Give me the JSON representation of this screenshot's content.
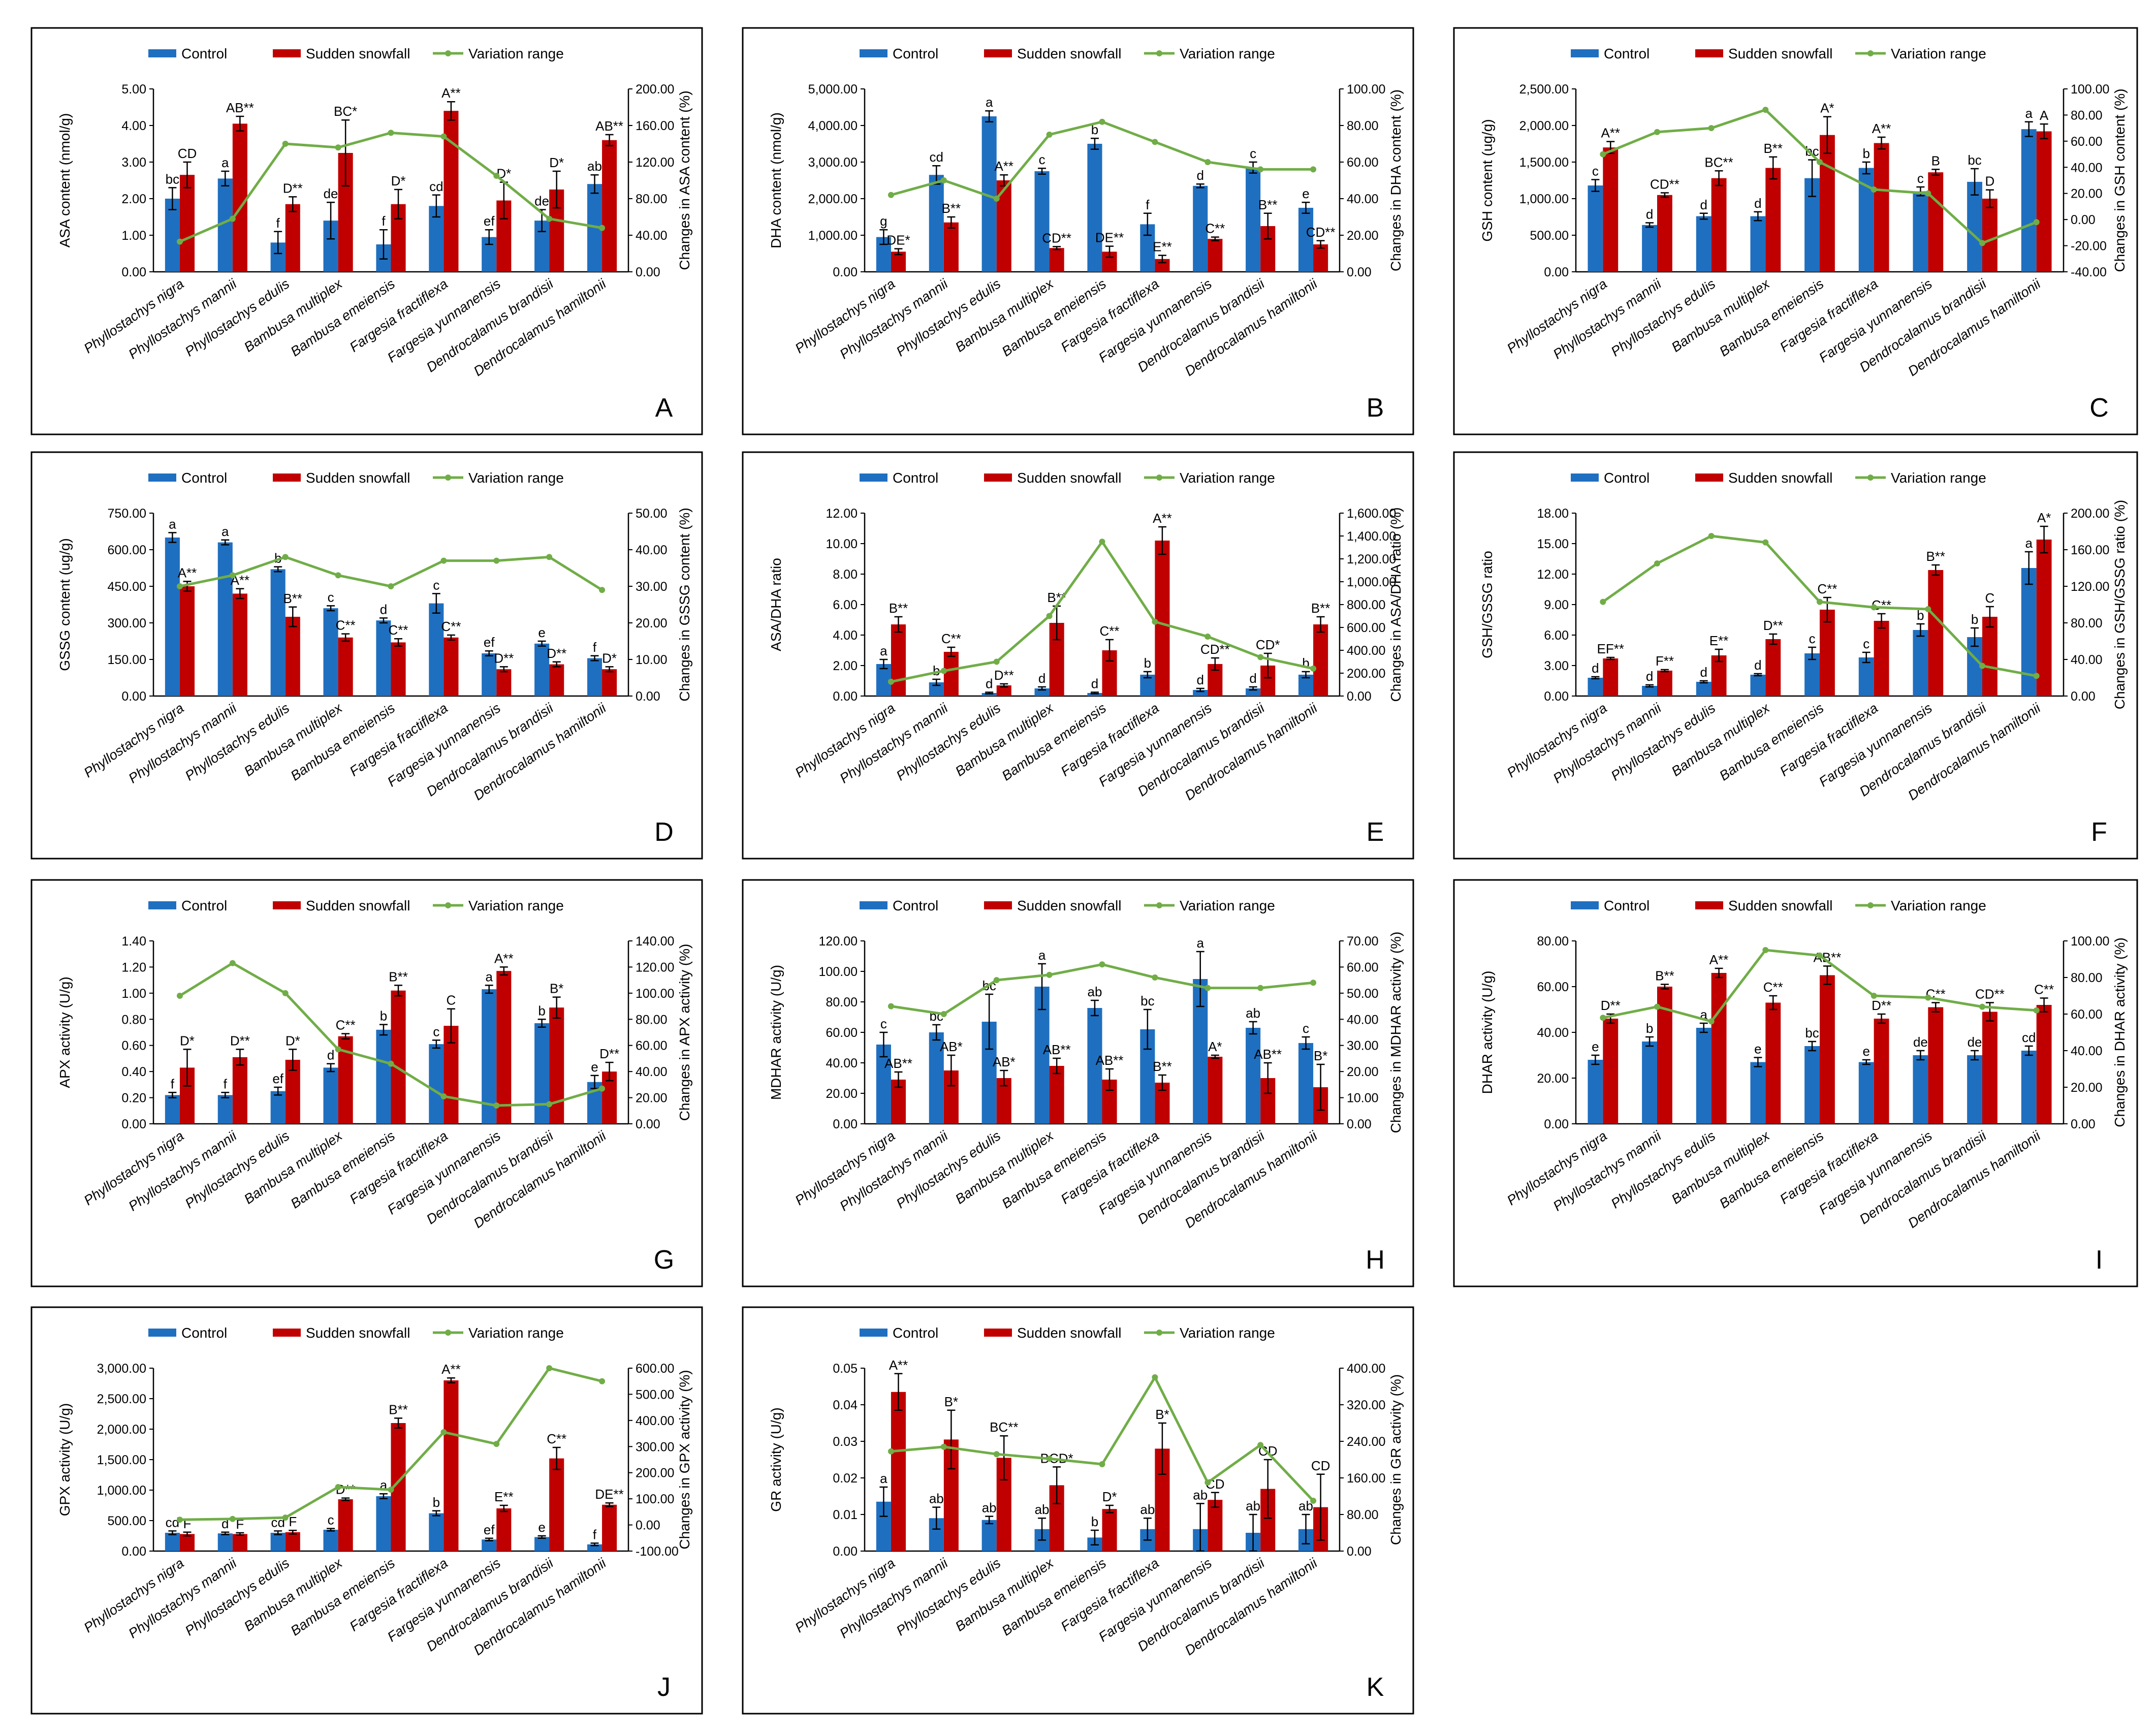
{
  "legend": {
    "control": "Control",
    "snowfall": "Sudden snowfall",
    "variation": "Variation range"
  },
  "colors": {
    "control": "#1f6fc0",
    "snowfall": "#c00000",
    "variation": "#70ad47"
  },
  "categories": [
    "Phyllostachys nigra",
    "Phyllostachys mannii",
    "Phyllostachys edulis",
    "Bambusa multiplex",
    "Bambusa  emeiensis",
    "Fargesia fractiflexa",
    "Fargesia yunnanensis",
    "Dendrocalamus brandisii",
    "Dendrocalamus hamiltonii"
  ],
  "chart_data": [
    {
      "panel": "A",
      "type": "bar",
      "ylabel": "ASA content (nmol/g)",
      "y2label": "Changes in ASA content (%)",
      "ylim": [
        0,
        5
      ],
      "ystep": 1,
      "ydec": 2,
      "y2lim": [
        0,
        200
      ],
      "y2step": 40,
      "y2dec": 2,
      "control": [
        2.0,
        2.55,
        0.8,
        1.4,
        0.75,
        1.8,
        0.95,
        1.4,
        2.4
      ],
      "control_err": [
        0.3,
        0.2,
        0.3,
        0.5,
        0.4,
        0.3,
        0.2,
        0.3,
        0.25
      ],
      "snowfall": [
        2.65,
        4.05,
        1.85,
        3.25,
        1.85,
        4.4,
        1.95,
        2.25,
        3.6
      ],
      "snowfall_err": [
        0.35,
        0.2,
        0.2,
        0.9,
        0.4,
        0.25,
        0.5,
        0.5,
        0.15
      ],
      "variation": [
        33,
        58,
        140,
        136,
        152,
        148,
        105,
        58,
        48
      ],
      "control_sig": [
        "bc",
        "a",
        "f",
        "de",
        "f",
        "cd",
        "ef",
        "de",
        "ab"
      ],
      "snowfall_sig": [
        "CD",
        "AB**",
        "D**",
        "BC*",
        "D*",
        "A**",
        "D*",
        "D*",
        "AB**"
      ]
    },
    {
      "panel": "B",
      "type": "bar",
      "ylabel": "DHA content (nmol/g)",
      "y2label": "Changes in DHA content (%)",
      "ylim": [
        0,
        5000
      ],
      "ystep": 1000,
      "ydec": 2,
      "y2lim": [
        0,
        100
      ],
      "y2step": 20,
      "y2dec": 2,
      "control": [
        950,
        2650,
        4250,
        2750,
        3500,
        1300,
        2350,
        2850,
        1750
      ],
      "control_err": [
        200,
        250,
        150,
        80,
        150,
        300,
        50,
        150,
        150
      ],
      "snowfall": [
        550,
        1350,
        2500,
        650,
        550,
        350,
        900,
        1250,
        750
      ],
      "snowfall_err": [
        80,
        150,
        150,
        40,
        150,
        100,
        50,
        350,
        100
      ],
      "variation": [
        42,
        50,
        40,
        75,
        82,
        71,
        60,
        56,
        56
      ],
      "control_sig": [
        "g",
        "cd",
        "a",
        "c",
        "b",
        "f",
        "d",
        "c",
        "e"
      ],
      "snowfall_sig": [
        "DE*",
        "B**",
        "A**",
        "CD**",
        "DE**",
        "E**",
        "C**",
        "B**",
        "CD**"
      ]
    },
    {
      "panel": "C",
      "type": "bar",
      "ylabel": "GSH content (ug/g)",
      "y2label": "Changes in GSH content (%)",
      "ylim": [
        0,
        2500
      ],
      "ystep": 500,
      "ydec": 2,
      "y2lim": [
        -40,
        100
      ],
      "y2step": 20,
      "y2dec": 2,
      "control": [
        1180,
        640,
        760,
        760,
        1280,
        1420,
        1100,
        1230,
        1950
      ],
      "control_err": [
        80,
        30,
        40,
        60,
        250,
        80,
        60,
        180,
        100
      ],
      "snowfall": [
        1700,
        1050,
        1280,
        1420,
        1870,
        1760,
        1360,
        1000,
        1920
      ],
      "snowfall_err": [
        80,
        30,
        100,
        150,
        250,
        80,
        40,
        120,
        100
      ],
      "variation": [
        50,
        67,
        70,
        84,
        44,
        23,
        20,
        -18,
        -2
      ],
      "control_sig": [
        "c",
        "d",
        "d",
        "d",
        "bc",
        "b",
        "c",
        "bc",
        "a"
      ],
      "snowfall_sig": [
        "A**",
        "CD**",
        "BC**",
        "B**",
        "A*",
        "A**",
        "B",
        "D",
        "A"
      ]
    },
    {
      "panel": "D",
      "type": "bar",
      "ylabel": "GSSG content (ug/g)",
      "y2label": "Changes in GSSG content (%)",
      "ylim": [
        0,
        750
      ],
      "ystep": 150,
      "ydec": 2,
      "y2lim": [
        0,
        50
      ],
      "y2step": 10,
      "y2dec": 2,
      "control": [
        650,
        630,
        520,
        360,
        310,
        380,
        175,
        215,
        155
      ],
      "control_err": [
        20,
        10,
        10,
        10,
        10,
        40,
        10,
        10,
        10
      ],
      "snowfall": [
        450,
        420,
        325,
        240,
        220,
        240,
        110,
        130,
        110
      ],
      "snowfall_err": [
        20,
        20,
        40,
        15,
        15,
        10,
        10,
        10,
        10
      ],
      "variation": [
        30,
        33,
        38,
        33,
        30,
        37,
        37,
        38,
        29
      ],
      "control_sig": [
        "a",
        "a",
        "b",
        "c",
        "d",
        "c",
        "ef",
        "e",
        "f"
      ],
      "snowfall_sig": [
        "A**",
        "A**",
        "B**",
        "C**",
        "C**",
        "C**",
        "D**",
        "D**",
        "D*"
      ]
    },
    {
      "panel": "E",
      "type": "bar",
      "ylabel": "ASA/DHA ratio",
      "y2label": "Changes in ASA/DHA ratio (%)",
      "ylim": [
        0,
        12
      ],
      "ystep": 2,
      "ydec": 2,
      "y2lim": [
        0,
        1600
      ],
      "y2step": 200,
      "y2dec": 2,
      "control": [
        2.1,
        0.9,
        0.2,
        0.5,
        0.2,
        1.4,
        0.4,
        0.5,
        1.4
      ],
      "control_err": [
        0.3,
        0.2,
        0.05,
        0.1,
        0.05,
        0.2,
        0.1,
        0.1,
        0.2
      ],
      "snowfall": [
        4.7,
        2.9,
        0.7,
        4.8,
        3.0,
        10.2,
        2.1,
        2.0,
        4.7
      ],
      "snowfall_err": [
        0.5,
        0.3,
        0.1,
        1.1,
        0.7,
        0.9,
        0.4,
        0.8,
        0.5
      ],
      "variation": [
        125,
        220,
        300,
        700,
        1350,
        650,
        520,
        340,
        240
      ],
      "control_sig": [
        "a",
        "b",
        "d",
        "d",
        "d",
        "b",
        "d",
        "d",
        "b"
      ],
      "snowfall_sig": [
        "B**",
        "C**",
        "D**",
        "B**",
        "C**",
        "A**",
        "CD**",
        "CD*",
        "B**"
      ]
    },
    {
      "panel": "F",
      "type": "bar",
      "ylabel": "GSH/GSSG ratio",
      "y2label": "Changes in GSH/GSSG ratio (%)",
      "ylim": [
        0,
        18
      ],
      "ystep": 3,
      "ydec": 2,
      "y2lim": [
        0,
        200
      ],
      "y2step": 40,
      "y2dec": 2,
      "control": [
        1.8,
        1.0,
        1.4,
        2.1,
        4.2,
        3.8,
        6.5,
        5.8,
        12.6
      ],
      "control_err": [
        0.1,
        0.1,
        0.1,
        0.1,
        0.6,
        0.5,
        0.6,
        0.9,
        1.6
      ],
      "snowfall": [
        3.7,
        2.5,
        4.0,
        5.6,
        8.5,
        7.4,
        12.4,
        7.8,
        15.4
      ],
      "snowfall_err": [
        0.1,
        0.1,
        0.6,
        0.5,
        1.2,
        0.7,
        0.5,
        1.0,
        1.3
      ],
      "variation": [
        103,
        145,
        175,
        168,
        103,
        97,
        95,
        33,
        22
      ],
      "control_sig": [
        "d",
        "d",
        "d",
        "d",
        "c",
        "c",
        "b",
        "b",
        "a"
      ],
      "snowfall_sig": [
        "EF**",
        "F**",
        "E**",
        "D**",
        "C**",
        "C**",
        "B**",
        "C",
        "A*"
      ]
    },
    {
      "panel": "G",
      "type": "bar",
      "ylabel": "APX activity (U/g)",
      "y2label": "Changes in APX activity (%)",
      "ylim": [
        0,
        1.4
      ],
      "ystep": 0.2,
      "ydec": 2,
      "y2lim": [
        0,
        140
      ],
      "y2step": 20,
      "y2dec": 2,
      "control": [
        0.22,
        0.22,
        0.25,
        0.43,
        0.72,
        0.61,
        1.03,
        0.77,
        0.32
      ],
      "control_err": [
        0.02,
        0.02,
        0.03,
        0.03,
        0.04,
        0.03,
        0.03,
        0.03,
        0.05
      ],
      "snowfall": [
        0.43,
        0.51,
        0.49,
        0.67,
        1.02,
        0.75,
        1.17,
        0.89,
        0.4
      ],
      "snowfall_err": [
        0.14,
        0.06,
        0.08,
        0.02,
        0.04,
        0.13,
        0.03,
        0.08,
        0.07
      ],
      "variation": [
        98,
        123,
        100,
        57,
        46,
        21,
        14,
        15,
        27
      ],
      "control_sig": [
        "f",
        "f",
        "ef",
        "d",
        "b",
        "c",
        "a",
        "b",
        "e"
      ],
      "snowfall_sig": [
        "D*",
        "D**",
        "D*",
        "C**",
        "B**",
        "C",
        "A**",
        "B*",
        "D**"
      ]
    },
    {
      "panel": "H",
      "type": "bar",
      "ylabel": "MDHAR activity (U/g)",
      "y2label": "Changes in MDHAR activity (%)",
      "ylim": [
        0,
        120
      ],
      "ystep": 20,
      "ydec": 2,
      "y2lim": [
        0,
        70
      ],
      "y2step": 10,
      "y2dec": 2,
      "control": [
        52,
        60,
        67,
        90,
        76,
        62,
        95,
        63,
        53
      ],
      "control_err": [
        8,
        5,
        18,
        15,
        5,
        13,
        18,
        4,
        4
      ],
      "snowfall": [
        29,
        35,
        30,
        38,
        29,
        27,
        44,
        30,
        24
      ],
      "snowfall_err": [
        5,
        10,
        5,
        5,
        7,
        5,
        1,
        10,
        15
      ],
      "variation": [
        45,
        42,
        55,
        57,
        61,
        56,
        52,
        52,
        54
      ],
      "control_sig": [
        "c",
        "bc",
        "bc",
        "a",
        "ab",
        "bc",
        "a",
        "ab",
        "c"
      ],
      "snowfall_sig": [
        "AB**",
        "AB*",
        "AB*",
        "AB**",
        "AB**",
        "B**",
        "A*",
        "AB**",
        "B*"
      ]
    },
    {
      "panel": "I",
      "type": "bar",
      "ylabel": "DHAR activity (U/g)",
      "y2label": "Changes in DHAR activity (%)",
      "ylim": [
        0,
        80
      ],
      "ystep": 20,
      "ydec": 2,
      "y2lim": [
        0,
        100
      ],
      "y2step": 20,
      "y2dec": 2,
      "control": [
        28,
        36,
        42,
        27,
        34,
        27,
        30,
        30,
        32
      ],
      "control_err": [
        2,
        2,
        2,
        2,
        2,
        1,
        2,
        2,
        2
      ],
      "snowfall": [
        46,
        60,
        66,
        53,
        65,
        46,
        51,
        49,
        52
      ],
      "snowfall_err": [
        2,
        1,
        2,
        3,
        4,
        2,
        2,
        4,
        3
      ],
      "variation": [
        58,
        64,
        56,
        95,
        92,
        70,
        69,
        64,
        62
      ],
      "control_sig": [
        "e",
        "b",
        "a",
        "e",
        "bc",
        "e",
        "de",
        "de",
        "cd"
      ],
      "snowfall_sig": [
        "D**",
        "B**",
        "A**",
        "C**",
        "AB**",
        "D**",
        "C**",
        "CD**",
        "C**"
      ]
    },
    {
      "panel": "J",
      "type": "bar",
      "ylabel": "GPX activity (U/g)",
      "y2label": "Changes in GPX activity (%)",
      "ylim": [
        0,
        3000
      ],
      "ystep": 500,
      "ydec": 2,
      "y2lim": [
        -100,
        600
      ],
      "y2step": 100,
      "y2dec": 2,
      "control": [
        300,
        290,
        300,
        350,
        900,
        620,
        190,
        230,
        110
      ],
      "control_err": [
        30,
        20,
        30,
        20,
        40,
        40,
        20,
        20,
        20
      ],
      "snowfall": [
        280,
        280,
        310,
        850,
        2100,
        2800,
        700,
        1520,
        760
      ],
      "snowfall_err": [
        30,
        20,
        30,
        20,
        80,
        40,
        50,
        180,
        30
      ],
      "variation": [
        20,
        23,
        28,
        145,
        135,
        355,
        310,
        600,
        550
      ],
      "control_sig": [
        "cd",
        "d",
        "cd",
        "c",
        "a",
        "b",
        "ef",
        "e",
        "f"
      ],
      "snowfall_sig": [
        "F",
        "F",
        "F",
        "D**",
        "B**",
        "A**",
        "E**",
        "C**",
        "DE**"
      ]
    },
    {
      "panel": "K",
      "type": "bar",
      "ylabel": "GR activity (U/g)",
      "y2label": "Changes in GR activity (%)",
      "ylim": [
        0,
        0.05
      ],
      "ystep": 0.01,
      "ydec": 2,
      "y2lim": [
        0,
        400
      ],
      "y2step": 80,
      "y2dec": 2,
      "control": [
        0.0135,
        0.009,
        0.0085,
        0.006,
        0.0037,
        0.006,
        0.006,
        0.005,
        0.006
      ],
      "control_err": [
        0.004,
        0.003,
        0.001,
        0.003,
        0.002,
        0.003,
        0.007,
        0.005,
        0.004
      ],
      "snowfall": [
        0.0435,
        0.0305,
        0.0255,
        0.018,
        0.0115,
        0.028,
        0.014,
        0.017,
        0.012
      ],
      "snowfall_err": [
        0.005,
        0.008,
        0.006,
        0.005,
        0.001,
        0.007,
        0.002,
        0.008,
        0.009
      ],
      "variation": [
        218,
        228,
        212,
        202,
        190,
        380,
        150,
        232,
        110
      ],
      "control_sig": [
        "a",
        "ab",
        "ab",
        "ab",
        "b",
        "ab",
        "ab",
        "ab",
        "ab"
      ],
      "snowfall_sig": [
        "A**",
        "B*",
        "BC**",
        "BCD*",
        "D*",
        "B*",
        "CD",
        "CD",
        "CD"
      ]
    }
  ]
}
